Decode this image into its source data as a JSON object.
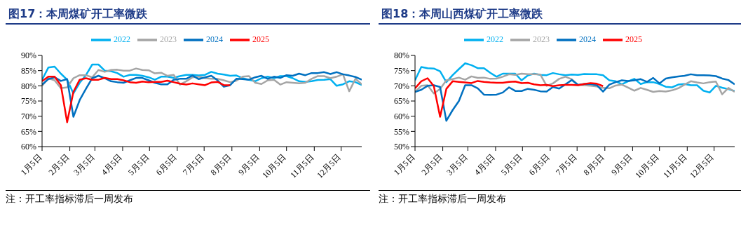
{
  "chart_data": [
    {
      "type": "line",
      "title": "图17：本周煤矿开工率微跌",
      "annotations": [
        "注：开工率指标滞后一周发布"
      ],
      "legend": "top",
      "marker": "none",
      "line_style": "solid",
      "x": [
        "--01-05",
        "--01-12",
        "--01-19",
        "--01-26",
        "--02-02",
        "--02-09",
        "--02-16",
        "--02-23",
        "--03-02",
        "--03-09",
        "--03-16",
        "--03-23",
        "--03-30",
        "--04-06",
        "--04-13",
        "--04-20",
        "--04-27",
        "--05-04",
        "--05-11",
        "--05-18",
        "--05-25",
        "--06-01",
        "--06-08",
        "--06-15",
        "--06-22",
        "--06-29",
        "--07-06",
        "--07-13",
        "--07-20",
        "--07-27",
        "--08-03",
        "--08-10",
        "--08-17",
        "--08-24",
        "--08-31",
        "--09-07",
        "--09-14",
        "--09-21",
        "--09-28",
        "--10-05",
        "--10-12",
        "--10-19",
        "--10-26",
        "--11-02",
        "--11-09",
        "--11-16",
        "--11-23",
        "--11-30",
        "--12-07",
        "--12-14",
        "--12-21",
        "--12-28"
      ],
      "xlim": [
        "--01-05",
        "--12-28"
      ],
      "xticks": [
        {
          "value": "--01-05",
          "label": "1月5日"
        },
        {
          "value": "--02-05",
          "label": "2月5日"
        },
        {
          "value": "--03-05",
          "label": "3月5日"
        },
        {
          "value": "--04-05",
          "label": "4月5日"
        },
        {
          "value": "--05-05",
          "label": "5月5日"
        },
        {
          "value": "--06-05",
          "label": "6月5日"
        },
        {
          "value": "--07-05",
          "label": "7月5日"
        },
        {
          "value": "--08-05",
          "label": "8月5日"
        },
        {
          "value": "--09-05",
          "label": "9月5日"
        },
        {
          "value": "--10-05",
          "label": "10月5日"
        },
        {
          "value": "--11-05",
          "label": "11月5日"
        },
        {
          "value": "--12-05",
          "label": "12月5日"
        }
      ],
      "ylim": [
        60,
        90
      ],
      "yticks": [
        {
          "value": 60,
          "label": "60%"
        },
        {
          "value": 65,
          "label": "65%"
        },
        {
          "value": 70,
          "label": "70%"
        },
        {
          "value": 75,
          "label": "75%"
        },
        {
          "value": 80,
          "label": "80%"
        },
        {
          "value": 85,
          "label": "85%"
        },
        {
          "value": 90,
          "label": "90%"
        }
      ],
      "series": [
        {
          "name": "2022",
          "color": "#00b0f0",
          "values": [
            82,
            86,
            86.3,
            84,
            82,
            77.5,
            81,
            83.5,
            87,
            87,
            85,
            84.8,
            84.2,
            83,
            83.6,
            83.6,
            83.3,
            82.8,
            82,
            83,
            83,
            82.6,
            83.2,
            83.6,
            83.6,
            83.4,
            83.6,
            84.6,
            84,
            83.7,
            83.3,
            83.4,
            82.5,
            82,
            81.5,
            82.5,
            83,
            82.5,
            83.2,
            83.2,
            82.5,
            81.5,
            81.3,
            81.5,
            81.9,
            82,
            82.2,
            80,
            80.5,
            81.5,
            81.2,
            80.3
          ]
        },
        {
          "name": "2023",
          "color": "#a5a5a5",
          "values": [
            80,
            82.5,
            81.8,
            79.2,
            79.5,
            82.5,
            83.5,
            83.5,
            82.8,
            85.2,
            84.6,
            85.2,
            85.3,
            85,
            85,
            85.7,
            85.2,
            85.1,
            84.1,
            84.3,
            83.3,
            83.6,
            80.4,
            81.5,
            82.8,
            83,
            82.5,
            82.3,
            82.3,
            81.8,
            81.2,
            81.7,
            83,
            83.2,
            81,
            80.6,
            81.8,
            82,
            80.4,
            81.2,
            81,
            80.8,
            81,
            82.3,
            83.2,
            83.2,
            82.5,
            83,
            83.8,
            78.2,
            82.3,
            80.5
          ]
        },
        {
          "name": "2024",
          "color": "#0070c0",
          "values": [
            80.4,
            82.2,
            82.8,
            81.6,
            82.2,
            69.8,
            75.3,
            79,
            82.5,
            83.3,
            82.5,
            81.5,
            81.2,
            81,
            81.8,
            82.6,
            82.6,
            81.8,
            81,
            80.5,
            80.5,
            82,
            82.3,
            82.3,
            83.4,
            82.2,
            82.8,
            83.3,
            81.8,
            79.7,
            80.2,
            82.3,
            82.2,
            82,
            82.8,
            83.3,
            82.3,
            83,
            82.6,
            83.5,
            83.3,
            84,
            83.5,
            84.2,
            84.2,
            84.5,
            83.9,
            84.5,
            83.8,
            83.4,
            82.9,
            82
          ]
        },
        {
          "name": "2025",
          "color": "#ff0000",
          "values": [
            81.5,
            83,
            83,
            80.2,
            68,
            78,
            82,
            82.5,
            82,
            82,
            82.6,
            82.2,
            82.2,
            81.8,
            81.2,
            81,
            81.4,
            81.2,
            81.3,
            81.3,
            81.7,
            81.2,
            80.7,
            80.4,
            80.8,
            80.5,
            80.2,
            81.1,
            81.3,
            80.2,
            80.2,
            null,
            null,
            null,
            null,
            null,
            null,
            null,
            null,
            null,
            null,
            null,
            null,
            null,
            null,
            null,
            null,
            null,
            null,
            null,
            null,
            null
          ]
        }
      ]
    },
    {
      "type": "line",
      "title": "图18：本周山西煤矿开工率微跌",
      "annotations": [
        "注：开工率指标滞后一周发布"
      ],
      "legend": "top",
      "marker": "none",
      "line_style": "solid",
      "x": [
        "--01-05",
        "--01-12",
        "--01-19",
        "--01-26",
        "--02-02",
        "--02-09",
        "--02-16",
        "--02-23",
        "--03-02",
        "--03-09",
        "--03-16",
        "--03-23",
        "--03-30",
        "--04-06",
        "--04-13",
        "--04-20",
        "--04-27",
        "--05-04",
        "--05-11",
        "--05-18",
        "--05-25",
        "--06-01",
        "--06-08",
        "--06-15",
        "--06-22",
        "--06-29",
        "--07-06",
        "--07-13",
        "--07-20",
        "--07-27",
        "--08-03",
        "--08-10",
        "--08-17",
        "--08-24",
        "--08-31",
        "--09-07",
        "--09-14",
        "--09-21",
        "--09-28",
        "--10-05",
        "--10-12",
        "--10-19",
        "--10-26",
        "--11-02",
        "--11-09",
        "--11-16",
        "--11-23",
        "--11-30",
        "--12-07",
        "--12-14",
        "--12-21",
        "--12-28"
      ],
      "xlim": [
        "--01-05",
        "--12-28"
      ],
      "xticks": [
        {
          "value": "--01-05",
          "label": "1月5日"
        },
        {
          "value": "--02-05",
          "label": "2月5日"
        },
        {
          "value": "--03-05",
          "label": "3月5日"
        },
        {
          "value": "--04-05",
          "label": "4月5日"
        },
        {
          "value": "--05-05",
          "label": "5月5日"
        },
        {
          "value": "--06-05",
          "label": "6月5日"
        },
        {
          "value": "--07-05",
          "label": "7月5日"
        },
        {
          "value": "--08-05",
          "label": "8月5日"
        },
        {
          "value": "--09-05",
          "label": "9月5日"
        },
        {
          "value": "--10-05",
          "label": "10月5日"
        },
        {
          "value": "--11-05",
          "label": "11月5日"
        },
        {
          "value": "--12-05",
          "label": "12月5日"
        }
      ],
      "ylim": [
        50,
        80
      ],
      "yticks": [
        {
          "value": 50,
          "label": "50%"
        },
        {
          "value": 55,
          "label": "55%"
        },
        {
          "value": 60,
          "label": "60%"
        },
        {
          "value": 65,
          "label": "65%"
        },
        {
          "value": 70,
          "label": "70%"
        },
        {
          "value": 75,
          "label": "75%"
        },
        {
          "value": 80,
          "label": "80%"
        }
      ],
      "series": [
        {
          "name": "2022",
          "color": "#00b0f0",
          "values": [
            71.8,
            76.2,
            75.8,
            75.7,
            74.8,
            71.2,
            73.5,
            75.5,
            77.4,
            76.8,
            75.8,
            75.8,
            74.3,
            73,
            74,
            74,
            74,
            71.8,
            73.4,
            74,
            73.6,
            73.5,
            74.2,
            73.8,
            73.5,
            73.7,
            73.6,
            73.9,
            73.8,
            73.8,
            73.5,
            71.8,
            71.5,
            70.5,
            71.5,
            72.3,
            70.6,
            71.2,
            71.2,
            70.6,
            69.7,
            69.5,
            70.4,
            70.6,
            70.2,
            70.2,
            68.4,
            67.8,
            70,
            69.4,
            68.9,
            68.3
          ]
        },
        {
          "name": "2023",
          "color": "#a5a5a5",
          "values": [
            68,
            70,
            70.2,
            67.5,
            69,
            71.8,
            72.2,
            72.7,
            72,
            73.1,
            72.6,
            72.7,
            72.3,
            72.4,
            73,
            73.8,
            73.6,
            74,
            73.8,
            73.8,
            73.7,
            70,
            70.8,
            72.3,
            73,
            72.2,
            70.3,
            70.2,
            70,
            69.8,
            69.3,
            69.2,
            70.1,
            70.4,
            69.4,
            68.4,
            69.3,
            68.7,
            68,
            68.3,
            68.1,
            68.5,
            69.2,
            70.4,
            71.5,
            71.1,
            70.8,
            71.2,
            71.4,
            67.2,
            69.3,
            68
          ]
        },
        {
          "name": "2024",
          "color": "#0070c0",
          "values": [
            68,
            68.7,
            70,
            70.2,
            69.6,
            58.5,
            62,
            65,
            70.2,
            70.2,
            69.2,
            67.1,
            67,
            67.1,
            67.8,
            69.5,
            68.3,
            68.3,
            69,
            68.7,
            68.2,
            68.1,
            69.6,
            69.1,
            70.5,
            71.9,
            70.3,
            70.6,
            70.6,
            70.2,
            68.1,
            70.4,
            71.2,
            71.8,
            71.6,
            71.8,
            72.2,
            71.3,
            72.6,
            70.8,
            72.4,
            72.8,
            73.1,
            73.3,
            73.8,
            73.5,
            73.5,
            73.4,
            73.2,
            72.4,
            71.9,
            70.5
          ]
        },
        {
          "name": "2025",
          "color": "#ff0000",
          "values": [
            69.2,
            71.5,
            72.5,
            69.9,
            59.8,
            69,
            71.5,
            71.3,
            71.1,
            70.9,
            71.6,
            71.3,
            71.1,
            71,
            71,
            71.3,
            71.4,
            70.9,
            71,
            70.5,
            70.2,
            70.3,
            69.9,
            70.2,
            70.3,
            70.3,
            70.2,
            70.6,
            70.9,
            70.7,
            69.9,
            null,
            null,
            null,
            null,
            null,
            null,
            null,
            null,
            null,
            null,
            null,
            null,
            null,
            null,
            null,
            null,
            null,
            null,
            null,
            null,
            null
          ]
        }
      ]
    }
  ]
}
